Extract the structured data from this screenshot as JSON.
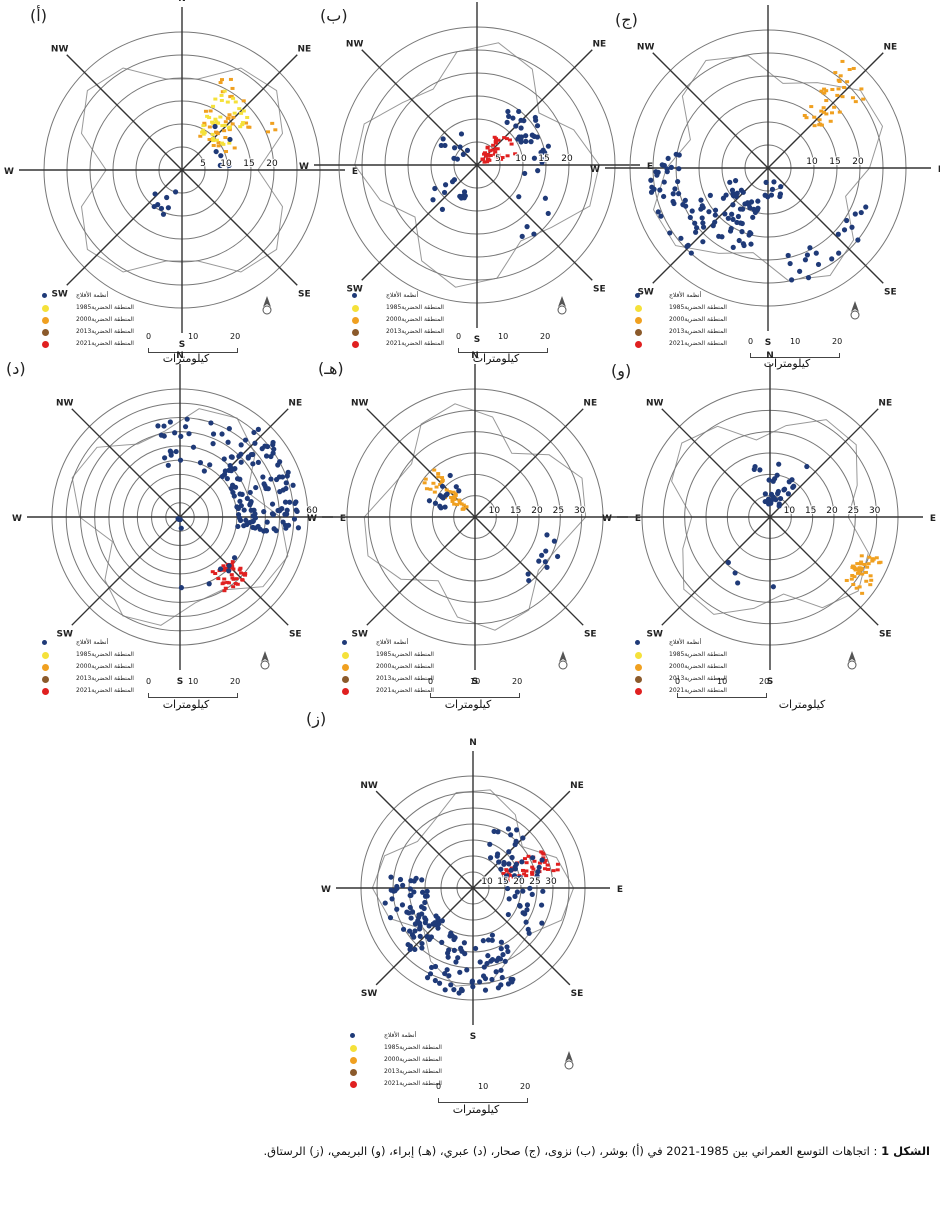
{
  "directions": [
    "N",
    "NE",
    "E",
    "SE",
    "S",
    "SW",
    "W",
    "NW"
  ],
  "legend": {
    "items": [
      {
        "label": "أنظمة الأفلاج",
        "color": "#1f3a78"
      },
      {
        "label": "المنطقة الحضرية1985",
        "color": "#f5e13a"
      },
      {
        "label": "المنطقة الحضرية2000",
        "color": "#f0a020"
      },
      {
        "label": "المنطقة الحضرية2013",
        "color": "#8b5a2b"
      },
      {
        "label": "المنطقة الحضرية2021",
        "color": "#e02020"
      }
    ]
  },
  "scale": {
    "ticks": [
      "0",
      "10",
      "20"
    ],
    "unit": "كيلومترات"
  },
  "panels": [
    {
      "label": "(أ)",
      "ring_labels": [
        "5",
        "10",
        "15",
        "20"
      ]
    },
    {
      "label": "(ب)",
      "ring_labels": [
        "5",
        "10",
        "15",
        "20"
      ]
    },
    {
      "label": "(ج)",
      "ring_labels": [
        "10",
        "15",
        "20"
      ]
    },
    {
      "label": "(د)",
      "ring_labels": [
        "60"
      ]
    },
    {
      "label": "(هـ)",
      "ring_labels": [
        "10",
        "15",
        "20",
        "25",
        "30"
      ]
    },
    {
      "label": "(و)",
      "ring_labels": [
        "10",
        "15",
        "20",
        "25",
        "30"
      ]
    },
    {
      "label": "(ز)",
      "ring_labels": [
        "10",
        "15",
        "20",
        "25",
        "30"
      ]
    }
  ],
  "caption": {
    "bold": "الشكل 1",
    "text": " : اتجاهات التوسع العمراني بين 1985-2021 في (أ) بوشر، (ب) نزوى، (ج) صحار، (د) عبري، (هـ) إبراء، (و) البريمي، (ز) الرستاق."
  }
}
